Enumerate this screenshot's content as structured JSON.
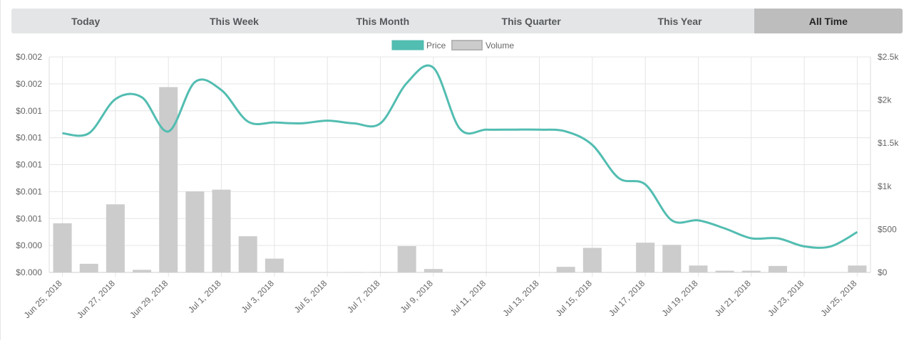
{
  "range_tabs": [
    {
      "label": "Today",
      "active": false
    },
    {
      "label": "This Week",
      "active": false
    },
    {
      "label": "This Month",
      "active": false
    },
    {
      "label": "This Quarter",
      "active": false
    },
    {
      "label": "This Year",
      "active": false
    },
    {
      "label": "All Time",
      "active": true
    }
  ],
  "chart_data": {
    "type": "line",
    "title": "",
    "legend": {
      "position": "top-center",
      "items": [
        {
          "name": "Price",
          "color": "#52bdb1"
        },
        {
          "name": "Volume",
          "color": "#cccccc"
        }
      ]
    },
    "x_tick_labels": [
      "Jun 25, 2018",
      "Jun 27, 2018",
      "Jun 29, 2018",
      "Jul 1, 2018",
      "Jul 3, 2018",
      "Jul 5, 2018",
      "Jul 7, 2018",
      "Jul 9, 2018",
      "Jul 11, 2018",
      "Jul 13, 2018",
      "Jul 15, 2018",
      "Jul 17, 2018",
      "Jul 19, 2018",
      "Jul 21, 2018",
      "Jul 23, 2018",
      "Jul 25, 2018"
    ],
    "dates": [
      "Jun 25, 2018",
      "Jun 26, 2018",
      "Jun 27, 2018",
      "Jun 28, 2018",
      "Jun 29, 2018",
      "Jun 30, 2018",
      "Jul 1, 2018",
      "Jul 2, 2018",
      "Jul 3, 2018",
      "Jul 4, 2018",
      "Jul 5, 2018",
      "Jul 6, 2018",
      "Jul 7, 2018",
      "Jul 8, 2018",
      "Jul 9, 2018",
      "Jul 10, 2018",
      "Jul 11, 2018",
      "Jul 12, 2018",
      "Jul 13, 2018",
      "Jul 14, 2018",
      "Jul 15, 2018",
      "Jul 16, 2018",
      "Jul 17, 2018",
      "Jul 18, 2018",
      "Jul 19, 2018",
      "Jul 20, 2018",
      "Jul 21, 2018",
      "Jul 22, 2018",
      "Jul 23, 2018",
      "Jul 24, 2018",
      "Jul 25, 2018"
    ],
    "left_axis": {
      "ticks": [
        "$0.002",
        "$0.002",
        "$0.001",
        "$0.001",
        "$0.001",
        "$0.001",
        "$0.001",
        "$0.000",
        "$0.000"
      ],
      "range": [
        0,
        0.0024
      ]
    },
    "right_axis": {
      "ticks": [
        "$2.5k",
        "$2k",
        "$1.5k",
        "$1k",
        "$500",
        "$0"
      ],
      "range": [
        0,
        2500
      ]
    },
    "grid": true,
    "series": [
      {
        "name": "Price",
        "kind": "line",
        "axis": "left",
        "color": "#52bdb1",
        "values": [
          0.00155,
          0.00155,
          0.00193,
          0.00195,
          0.00157,
          0.00212,
          0.00203,
          0.00168,
          0.00167,
          0.00166,
          0.00169,
          0.00166,
          0.00166,
          0.00211,
          0.00228,
          0.0016,
          0.00159,
          0.00159,
          0.00159,
          0.00157,
          0.00142,
          0.00105,
          0.00098,
          0.00058,
          0.00058,
          0.00049,
          0.00038,
          0.00038,
          0.00029,
          0.00029,
          0.00045
        ]
      },
      {
        "name": "Volume",
        "kind": "bar",
        "axis": "right",
        "color": "#cccccc",
        "values": [
          570,
          100,
          790,
          30,
          2150,
          940,
          960,
          420,
          160,
          0,
          0,
          5,
          5,
          305,
          40,
          0,
          0,
          0,
          0,
          65,
          285,
          0,
          345,
          320,
          80,
          20,
          20,
          75,
          0,
          0,
          80
        ]
      }
    ]
  }
}
